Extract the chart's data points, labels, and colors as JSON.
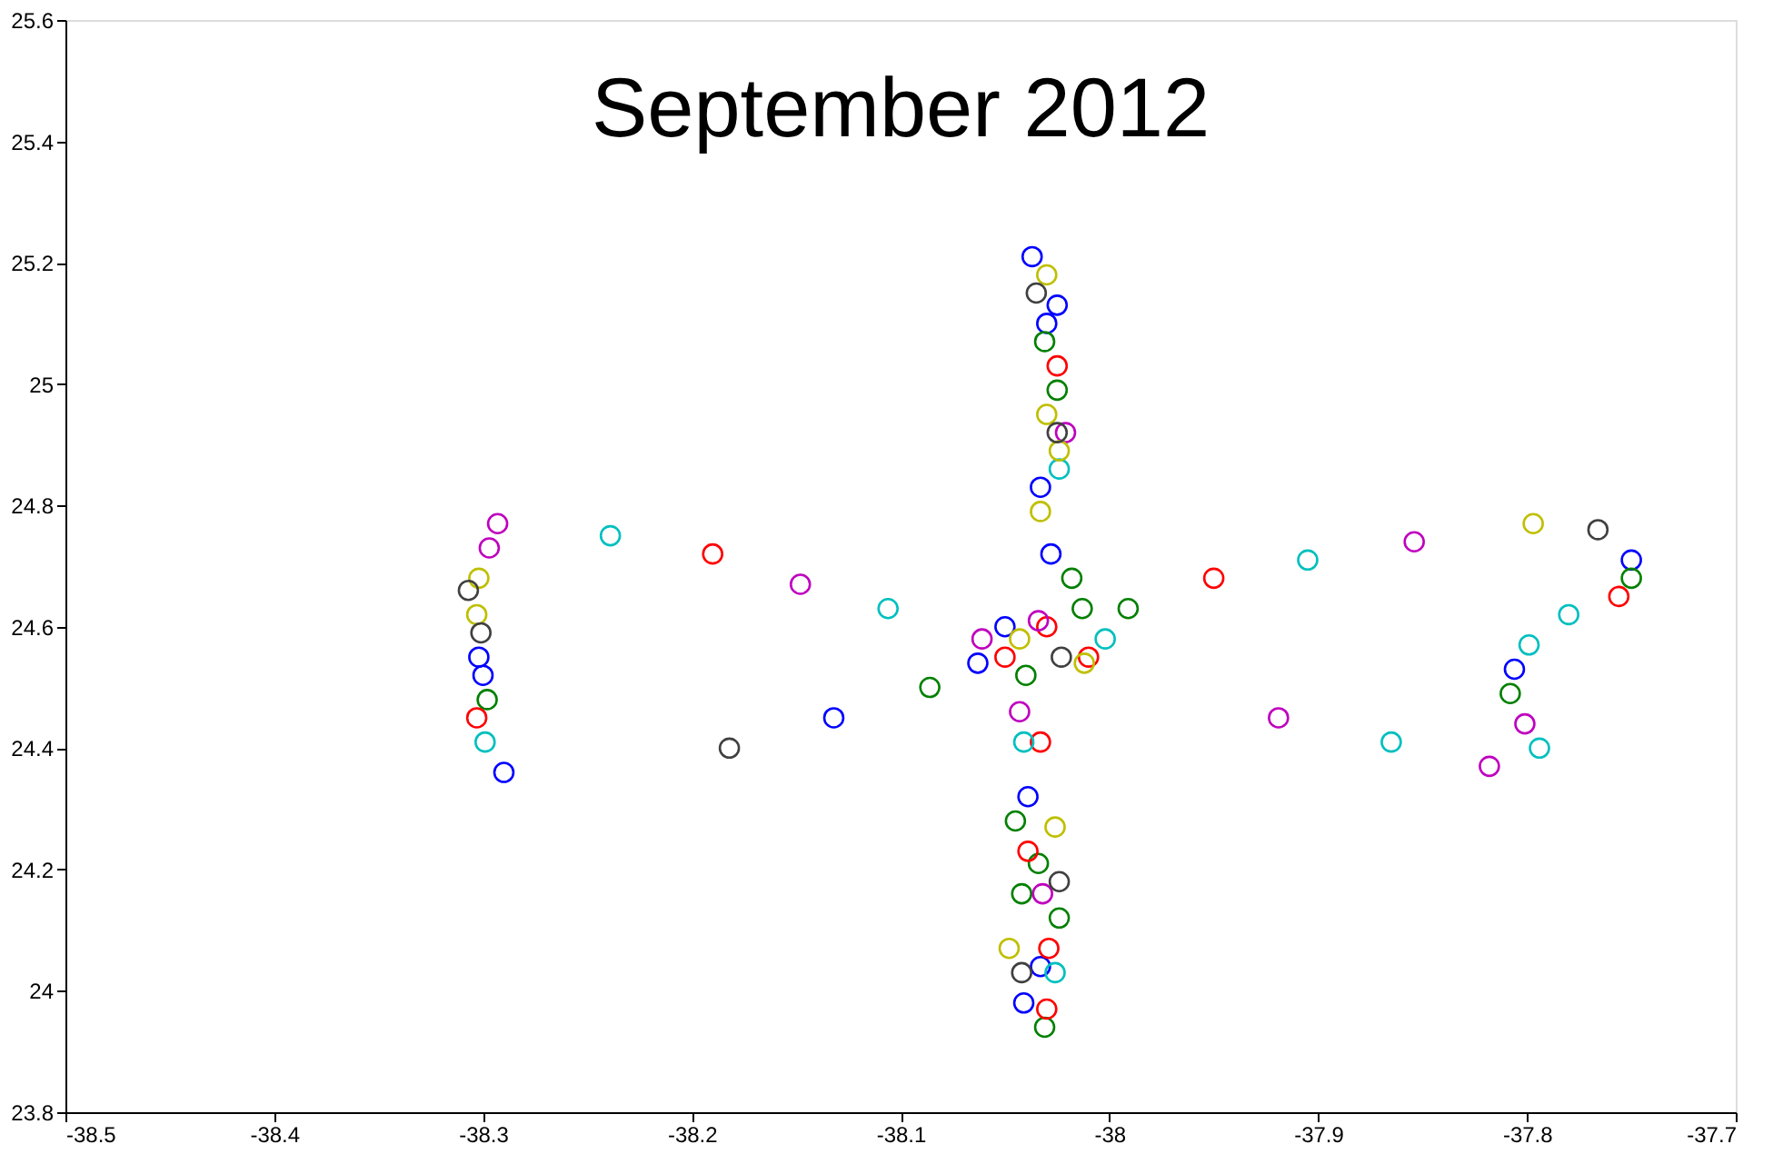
{
  "chart_data": {
    "type": "scatter",
    "title": "September 2012",
    "marker": "circle",
    "grid": false,
    "legend": false,
    "xlim": [
      -38.5,
      -37.7
    ],
    "xticks": [
      -38.5,
      -38.4,
      -38.3,
      -38.2,
      -38.1,
      -38,
      -37.9,
      -37.8,
      -37.7
    ],
    "ylim": [
      23.8,
      25.6
    ],
    "yticks": [
      23.8,
      24,
      24.2,
      24.4,
      24.6,
      24.8,
      25,
      25.2,
      25.4,
      25.6
    ],
    "series": [
      {
        "color": "#0000ff",
        "x": [
          -38.037,
          -38.025,
          -38.03,
          -38.033,
          -38.028,
          -38.063,
          -38.05,
          -38.302,
          -38.3,
          -38.29,
          -38.132,
          -38.039,
          -38.033,
          -38.041,
          -37.75,
          -37.806
        ],
        "values": [
          25.21,
          25.13,
          25.1,
          24.83,
          24.72,
          24.54,
          24.6,
          24.55,
          24.52,
          24.36,
          24.45,
          24.32,
          24.04,
          23.98,
          24.71,
          24.53
        ]
      },
      {
        "color": "#008000",
        "x": [
          -38.031,
          -38.025,
          -38.018,
          -38.013,
          -37.991,
          -38.298,
          -38.086,
          -38.045,
          -38.034,
          -38.042,
          -38.024,
          -38.031,
          -37.75,
          -37.808,
          -38.04
        ],
        "values": [
          25.07,
          24.99,
          24.68,
          24.63,
          24.63,
          24.48,
          24.5,
          24.28,
          24.21,
          24.16,
          24.12,
          23.94,
          24.68,
          24.49,
          24.52
        ]
      },
      {
        "color": "#ff0000",
        "x": [
          -38.025,
          -38.19,
          -37.95,
          -38.303,
          -37.756,
          -38.033,
          -38.039,
          -38.029,
          -38.03,
          -38.01,
          -38.05,
          -38.03
        ],
        "values": [
          25.03,
          24.72,
          24.68,
          24.45,
          24.65,
          24.41,
          24.23,
          24.07,
          23.97,
          24.55,
          24.55,
          24.6
        ]
      },
      {
        "color": "#00bfbf",
        "x": [
          -38.239,
          -38.106,
          -38.024,
          -38.299,
          -37.905,
          -37.865,
          -37.78,
          -37.799,
          -37.794,
          -38.026,
          -38.041,
          -38.002
        ],
        "values": [
          24.75,
          24.63,
          24.86,
          24.41,
          24.71,
          24.41,
          24.62,
          24.57,
          24.4,
          24.03,
          24.41,
          24.58
        ]
      },
      {
        "color": "#bf00bf",
        "x": [
          -38.293,
          -38.297,
          -38.148,
          -37.854,
          -37.919,
          -37.801,
          -37.818,
          -38.021,
          -38.043,
          -38.032,
          -38.061,
          -38.034
        ],
        "values": [
          24.77,
          24.73,
          24.67,
          24.74,
          24.45,
          24.44,
          24.37,
          24.92,
          24.46,
          24.16,
          24.58,
          24.61
        ]
      },
      {
        "color": "#bfbf00",
        "x": [
          -38.302,
          -38.303,
          -38.03,
          -38.03,
          -38.024,
          -38.033,
          -37.797,
          -38.026,
          -38.048,
          -38.012,
          -38.043
        ],
        "values": [
          24.68,
          24.62,
          25.18,
          24.95,
          24.89,
          24.79,
          24.77,
          24.27,
          24.07,
          24.54,
          24.58
        ]
      },
      {
        "color": "#404040",
        "x": [
          -38.307,
          -38.301,
          -38.182,
          -38.035,
          -37.766,
          -38.024,
          -38.042,
          -38.025,
          -38.023
        ],
        "values": [
          24.66,
          24.59,
          24.4,
          25.15,
          24.76,
          24.18,
          24.03,
          24.92,
          24.55
        ]
      }
    ]
  }
}
